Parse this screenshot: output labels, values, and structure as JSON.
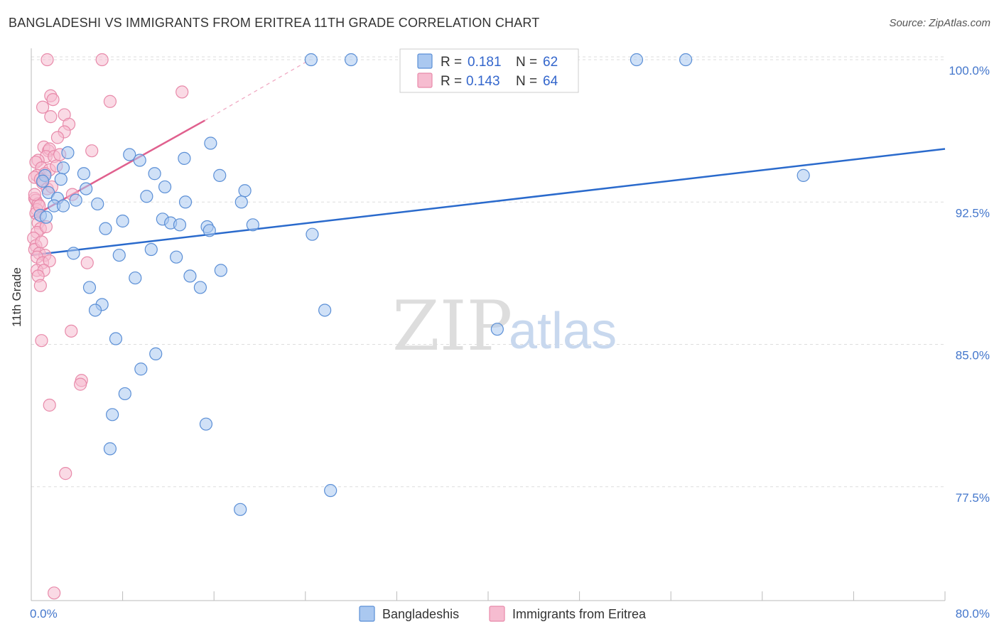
{
  "header": {
    "title": "BANGLADESHI VS IMMIGRANTS FROM ERITREA 11TH GRADE CORRELATION CHART",
    "source": "Source: ZipAtlas.com"
  },
  "watermark": {
    "zip": "ZIP",
    "atlas": "atlas"
  },
  "colors": {
    "blue_fill": "#aac8f0",
    "blue_stroke": "#5b8fd6",
    "blue_line": "#2a6acc",
    "pink_fill": "#f6bcd0",
    "pink_stroke": "#e88aaa",
    "pink_line": "#e0608e",
    "grid": "#dddddd",
    "axis_label": "#4477cc"
  },
  "stats_legend": {
    "rows": [
      {
        "r_label": "R =",
        "r_value": "0.181",
        "n_label": "N =",
        "n_value": "62"
      },
      {
        "r_label": "R =",
        "r_value": "0.143",
        "n_label": "N =",
        "n_value": "64"
      }
    ]
  },
  "chart_data": {
    "type": "scatter",
    "title": "BANGLADESHI VS IMMIGRANTS FROM ERITREA 11TH GRADE CORRELATION CHART",
    "xlabel": "",
    "ylabel": "11th Grade",
    "xlim": [
      0,
      80
    ],
    "ylim": [
      71.5,
      100.6
    ],
    "x_tick_labels": [
      "0.0%",
      "80.0%"
    ],
    "y_ticks": [
      77.5,
      85.0,
      92.5,
      100.0
    ],
    "y_tick_labels": [
      "77.5%",
      "85.0%",
      "92.5%",
      "100.0%"
    ],
    "grid": true,
    "legend_position": "bottom-center",
    "series": [
      {
        "name": "Bangladeshis",
        "r": 0.181,
        "n": 62,
        "trend": {
          "x0": 0,
          "y0": 89.7,
          "x1": 80,
          "y1": 95.3
        },
        "points": [
          [
            24.5,
            100.0
          ],
          [
            28.0,
            100.0
          ],
          [
            53.0,
            100.0
          ],
          [
            57.3,
            100.0
          ],
          [
            3.2,
            95.1
          ],
          [
            15.7,
            95.6
          ],
          [
            8.6,
            95.0
          ],
          [
            9.5,
            94.7
          ],
          [
            13.4,
            94.8
          ],
          [
            1.2,
            93.9
          ],
          [
            2.8,
            94.3
          ],
          [
            4.6,
            94.0
          ],
          [
            10.8,
            94.0
          ],
          [
            16.5,
            93.9
          ],
          [
            67.6,
            93.9
          ],
          [
            1.0,
            93.6
          ],
          [
            4.8,
            93.2
          ],
          [
            11.7,
            93.3
          ],
          [
            18.7,
            93.1
          ],
          [
            1.5,
            93.0
          ],
          [
            2.3,
            92.7
          ],
          [
            3.9,
            92.6
          ],
          [
            10.1,
            92.8
          ],
          [
            13.5,
            92.5
          ],
          [
            18.4,
            92.5
          ],
          [
            2.0,
            92.3
          ],
          [
            2.8,
            92.3
          ],
          [
            5.8,
            92.4
          ],
          [
            0.8,
            91.8
          ],
          [
            1.3,
            91.7
          ],
          [
            8.0,
            91.5
          ],
          [
            11.5,
            91.6
          ],
          [
            12.2,
            91.4
          ],
          [
            13.0,
            91.3
          ],
          [
            15.4,
            91.2
          ],
          [
            15.6,
            91.0
          ],
          [
            19.4,
            91.3
          ],
          [
            6.5,
            91.1
          ],
          [
            24.6,
            90.8
          ],
          [
            10.5,
            90.0
          ],
          [
            3.7,
            89.8
          ],
          [
            7.7,
            89.7
          ],
          [
            12.7,
            89.6
          ],
          [
            16.6,
            88.9
          ],
          [
            9.1,
            88.5
          ],
          [
            13.9,
            88.6
          ],
          [
            14.8,
            88.0
          ],
          [
            5.1,
            88.0
          ],
          [
            6.2,
            87.1
          ],
          [
            5.6,
            86.8
          ],
          [
            25.7,
            86.8
          ],
          [
            40.8,
            85.8
          ],
          [
            7.4,
            85.3
          ],
          [
            10.9,
            84.5
          ],
          [
            9.6,
            83.7
          ],
          [
            8.2,
            82.4
          ],
          [
            7.1,
            81.3
          ],
          [
            15.3,
            80.8
          ],
          [
            6.9,
            79.5
          ],
          [
            26.2,
            77.3
          ],
          [
            18.3,
            76.3
          ],
          [
            2.6,
            93.7
          ]
        ]
      },
      {
        "name": "Immigrants from Eritrea",
        "r": 0.143,
        "n": 64,
        "trend": {
          "x0": 0,
          "y0": 91.7,
          "x1": 15.2,
          "y1": 96.8,
          "dashed_to": {
            "x": 24.4,
            "y": 100.0
          }
        },
        "points": [
          [
            1.4,
            100.0
          ],
          [
            6.2,
            100.0
          ],
          [
            13.2,
            98.3
          ],
          [
            1.7,
            98.1
          ],
          [
            1.9,
            97.9
          ],
          [
            6.9,
            97.8
          ],
          [
            1.0,
            97.5
          ],
          [
            2.9,
            97.1
          ],
          [
            1.7,
            97.0
          ],
          [
            3.3,
            96.6
          ],
          [
            2.9,
            96.2
          ],
          [
            2.3,
            95.9
          ],
          [
            1.1,
            95.4
          ],
          [
            1.5,
            95.2
          ],
          [
            1.6,
            95.3
          ],
          [
            5.3,
            95.2
          ],
          [
            1.3,
            94.9
          ],
          [
            2.0,
            94.9
          ],
          [
            0.6,
            94.7
          ],
          [
            0.4,
            94.6
          ],
          [
            0.9,
            94.3
          ],
          [
            1.6,
            94.2
          ],
          [
            1.2,
            94.0
          ],
          [
            0.5,
            93.9
          ],
          [
            0.3,
            93.8
          ],
          [
            0.8,
            93.7
          ],
          [
            1.0,
            93.5
          ],
          [
            1.4,
            93.2
          ],
          [
            3.6,
            92.9
          ],
          [
            0.3,
            92.7
          ],
          [
            0.4,
            92.6
          ],
          [
            0.6,
            92.4
          ],
          [
            0.5,
            92.1
          ],
          [
            0.4,
            91.9
          ],
          [
            0.6,
            91.4
          ],
          [
            0.8,
            91.1
          ],
          [
            0.5,
            90.9
          ],
          [
            0.2,
            90.6
          ],
          [
            0.4,
            90.2
          ],
          [
            0.3,
            90.0
          ],
          [
            0.7,
            89.8
          ],
          [
            1.2,
            89.7
          ],
          [
            0.5,
            89.6
          ],
          [
            1.0,
            89.3
          ],
          [
            1.6,
            89.4
          ],
          [
            4.9,
            89.3
          ],
          [
            0.5,
            88.9
          ],
          [
            1.1,
            88.9
          ],
          [
            0.6,
            88.6
          ],
          [
            0.8,
            88.1
          ],
          [
            3.5,
            85.7
          ],
          [
            0.9,
            85.2
          ],
          [
            4.4,
            83.1
          ],
          [
            4.3,
            82.9
          ],
          [
            1.6,
            81.8
          ],
          [
            3.0,
            78.2
          ],
          [
            2.0,
            71.9
          ],
          [
            0.7,
            92.3
          ],
          [
            1.3,
            91.2
          ],
          [
            2.2,
            94.4
          ],
          [
            0.9,
            90.4
          ],
          [
            0.3,
            92.9
          ],
          [
            1.8,
            93.3
          ],
          [
            2.5,
            95.0
          ]
        ]
      }
    ]
  }
}
